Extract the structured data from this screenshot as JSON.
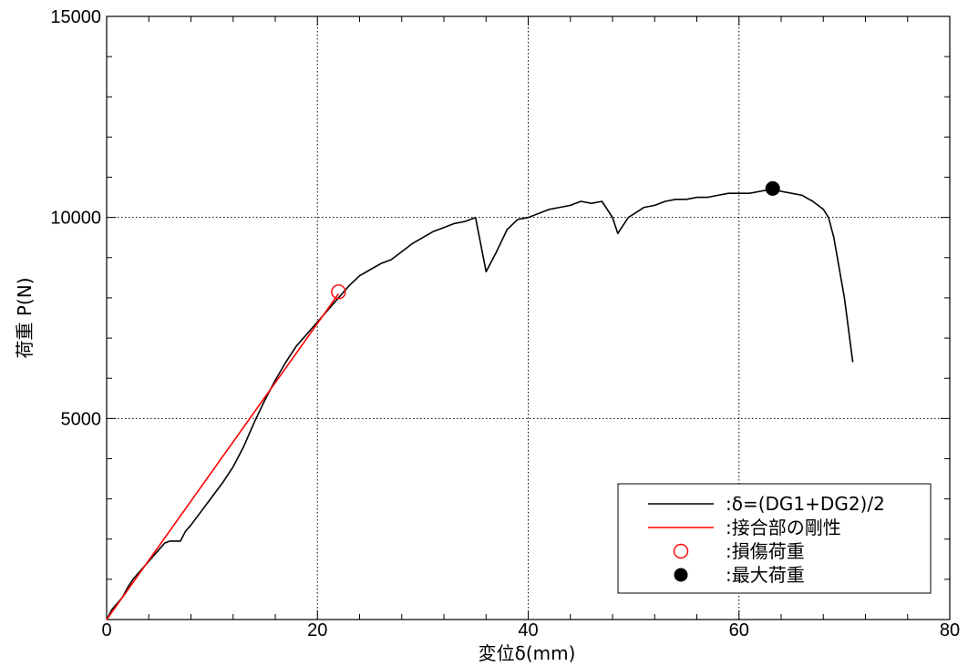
{
  "chart_data": {
    "type": "line",
    "xlabel": "変位δ(mm)",
    "ylabel": "荷重 P(N)",
    "xlim": [
      0,
      80
    ],
    "ylim": [
      0,
      15000
    ],
    "x_ticks": [
      "0",
      "20",
      "40",
      "60",
      "80"
    ],
    "y_ticks": [
      "5000",
      "10000",
      "15000"
    ],
    "grid": true,
    "legend_position": "bottom-right",
    "series": [
      {
        "name": ":δ=(DG1+DG2)/2",
        "color": "#000000",
        "points": [
          [
            0,
            0
          ],
          [
            0.5,
            250
          ],
          [
            1,
            400
          ],
          [
            1.5,
            550
          ],
          [
            2,
            800
          ],
          [
            2.5,
            1000
          ],
          [
            3,
            1150
          ],
          [
            4,
            1450
          ],
          [
            5,
            1750
          ],
          [
            5.5,
            1900
          ],
          [
            6,
            1950
          ],
          [
            7,
            1950
          ],
          [
            7.5,
            2200
          ],
          [
            8,
            2350
          ],
          [
            9,
            2700
          ],
          [
            10,
            3050
          ],
          [
            11,
            3400
          ],
          [
            12,
            3800
          ],
          [
            13,
            4300
          ],
          [
            14,
            4900
          ],
          [
            15,
            5450
          ],
          [
            16,
            5950
          ],
          [
            17,
            6400
          ],
          [
            18,
            6800
          ],
          [
            19,
            7100
          ],
          [
            20,
            7400
          ],
          [
            21,
            7700
          ],
          [
            22,
            8000
          ],
          [
            23,
            8300
          ],
          [
            24,
            8550
          ],
          [
            25,
            8700
          ],
          [
            26,
            8850
          ],
          [
            27,
            8950
          ],
          [
            28,
            9150
          ],
          [
            29,
            9350
          ],
          [
            30,
            9500
          ],
          [
            31,
            9650
          ],
          [
            32,
            9750
          ],
          [
            33,
            9850
          ],
          [
            34,
            9900
          ],
          [
            35,
            10000
          ],
          [
            36,
            8650
          ],
          [
            37,
            9150
          ],
          [
            38,
            9700
          ],
          [
            39,
            9950
          ],
          [
            40,
            10000
          ],
          [
            41,
            10100
          ],
          [
            42,
            10200
          ],
          [
            43,
            10250
          ],
          [
            44,
            10300
          ],
          [
            45,
            10400
          ],
          [
            46,
            10350
          ],
          [
            47,
            10400
          ],
          [
            48,
            10000
          ],
          [
            48.5,
            9600
          ],
          [
            49.5,
            10000
          ],
          [
            51,
            10250
          ],
          [
            52,
            10300
          ],
          [
            53,
            10400
          ],
          [
            54,
            10450
          ],
          [
            55,
            10450
          ],
          [
            56,
            10500
          ],
          [
            57,
            10500
          ],
          [
            58,
            10550
          ],
          [
            59,
            10600
          ],
          [
            60,
            10600
          ],
          [
            61,
            10600
          ],
          [
            62,
            10650
          ],
          [
            63,
            10700
          ],
          [
            64,
            10650
          ],
          [
            65,
            10600
          ],
          [
            66,
            10550
          ],
          [
            67,
            10400
          ],
          [
            68,
            10200
          ],
          [
            68.5,
            10000
          ],
          [
            69,
            9500
          ],
          [
            70,
            8000
          ],
          [
            70.8,
            6400
          ]
        ]
      },
      {
        "name": ":接合部の剛性",
        "color": "#ff0000",
        "points": [
          [
            0,
            0
          ],
          [
            22,
            8100
          ]
        ]
      }
    ],
    "markers": [
      {
        "name": ":損傷荷重",
        "x": 22,
        "y": 8150,
        "style": "open-circle",
        "color": "#ff0000"
      },
      {
        "name": ":最大荷重",
        "x": 63.2,
        "y": 10720,
        "style": "filled-circle",
        "color": "#000000"
      }
    ]
  }
}
